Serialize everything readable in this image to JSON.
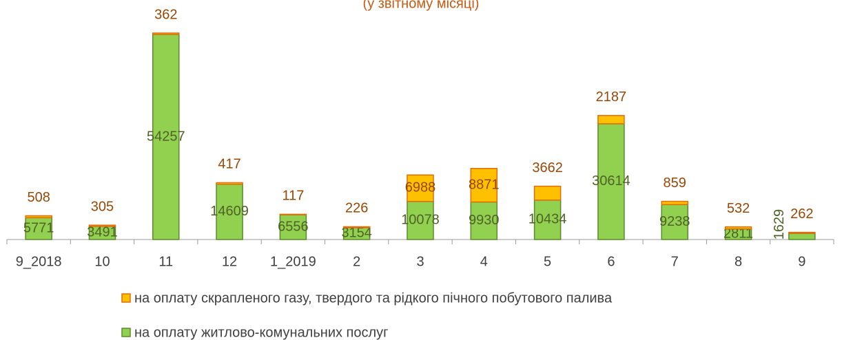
{
  "chart_data": {
    "type": "bar",
    "stacked": true,
    "title": "(у звітному місяці)",
    "categories": [
      "9_2018",
      "10",
      "11",
      "12",
      "1_2019",
      "2",
      "3",
      "4",
      "5",
      "6",
      "7",
      "8",
      "9"
    ],
    "series": [
      {
        "name": "на оплату житлово-комунальних послуг",
        "color": "#92d050",
        "values": [
          5771,
          3491,
          54257,
          14609,
          6556,
          3154,
          10078,
          9930,
          10434,
          30614,
          9238,
          2811,
          1629
        ]
      },
      {
        "name": "на оплату скрапленого газу, твердого та рідкого пічного побутового палива",
        "color": "#ffc000",
        "values": [
          508,
          305,
          362,
          417,
          117,
          226,
          6988,
          8871,
          3662,
          2187,
          859,
          532,
          262
        ]
      }
    ]
  }
}
